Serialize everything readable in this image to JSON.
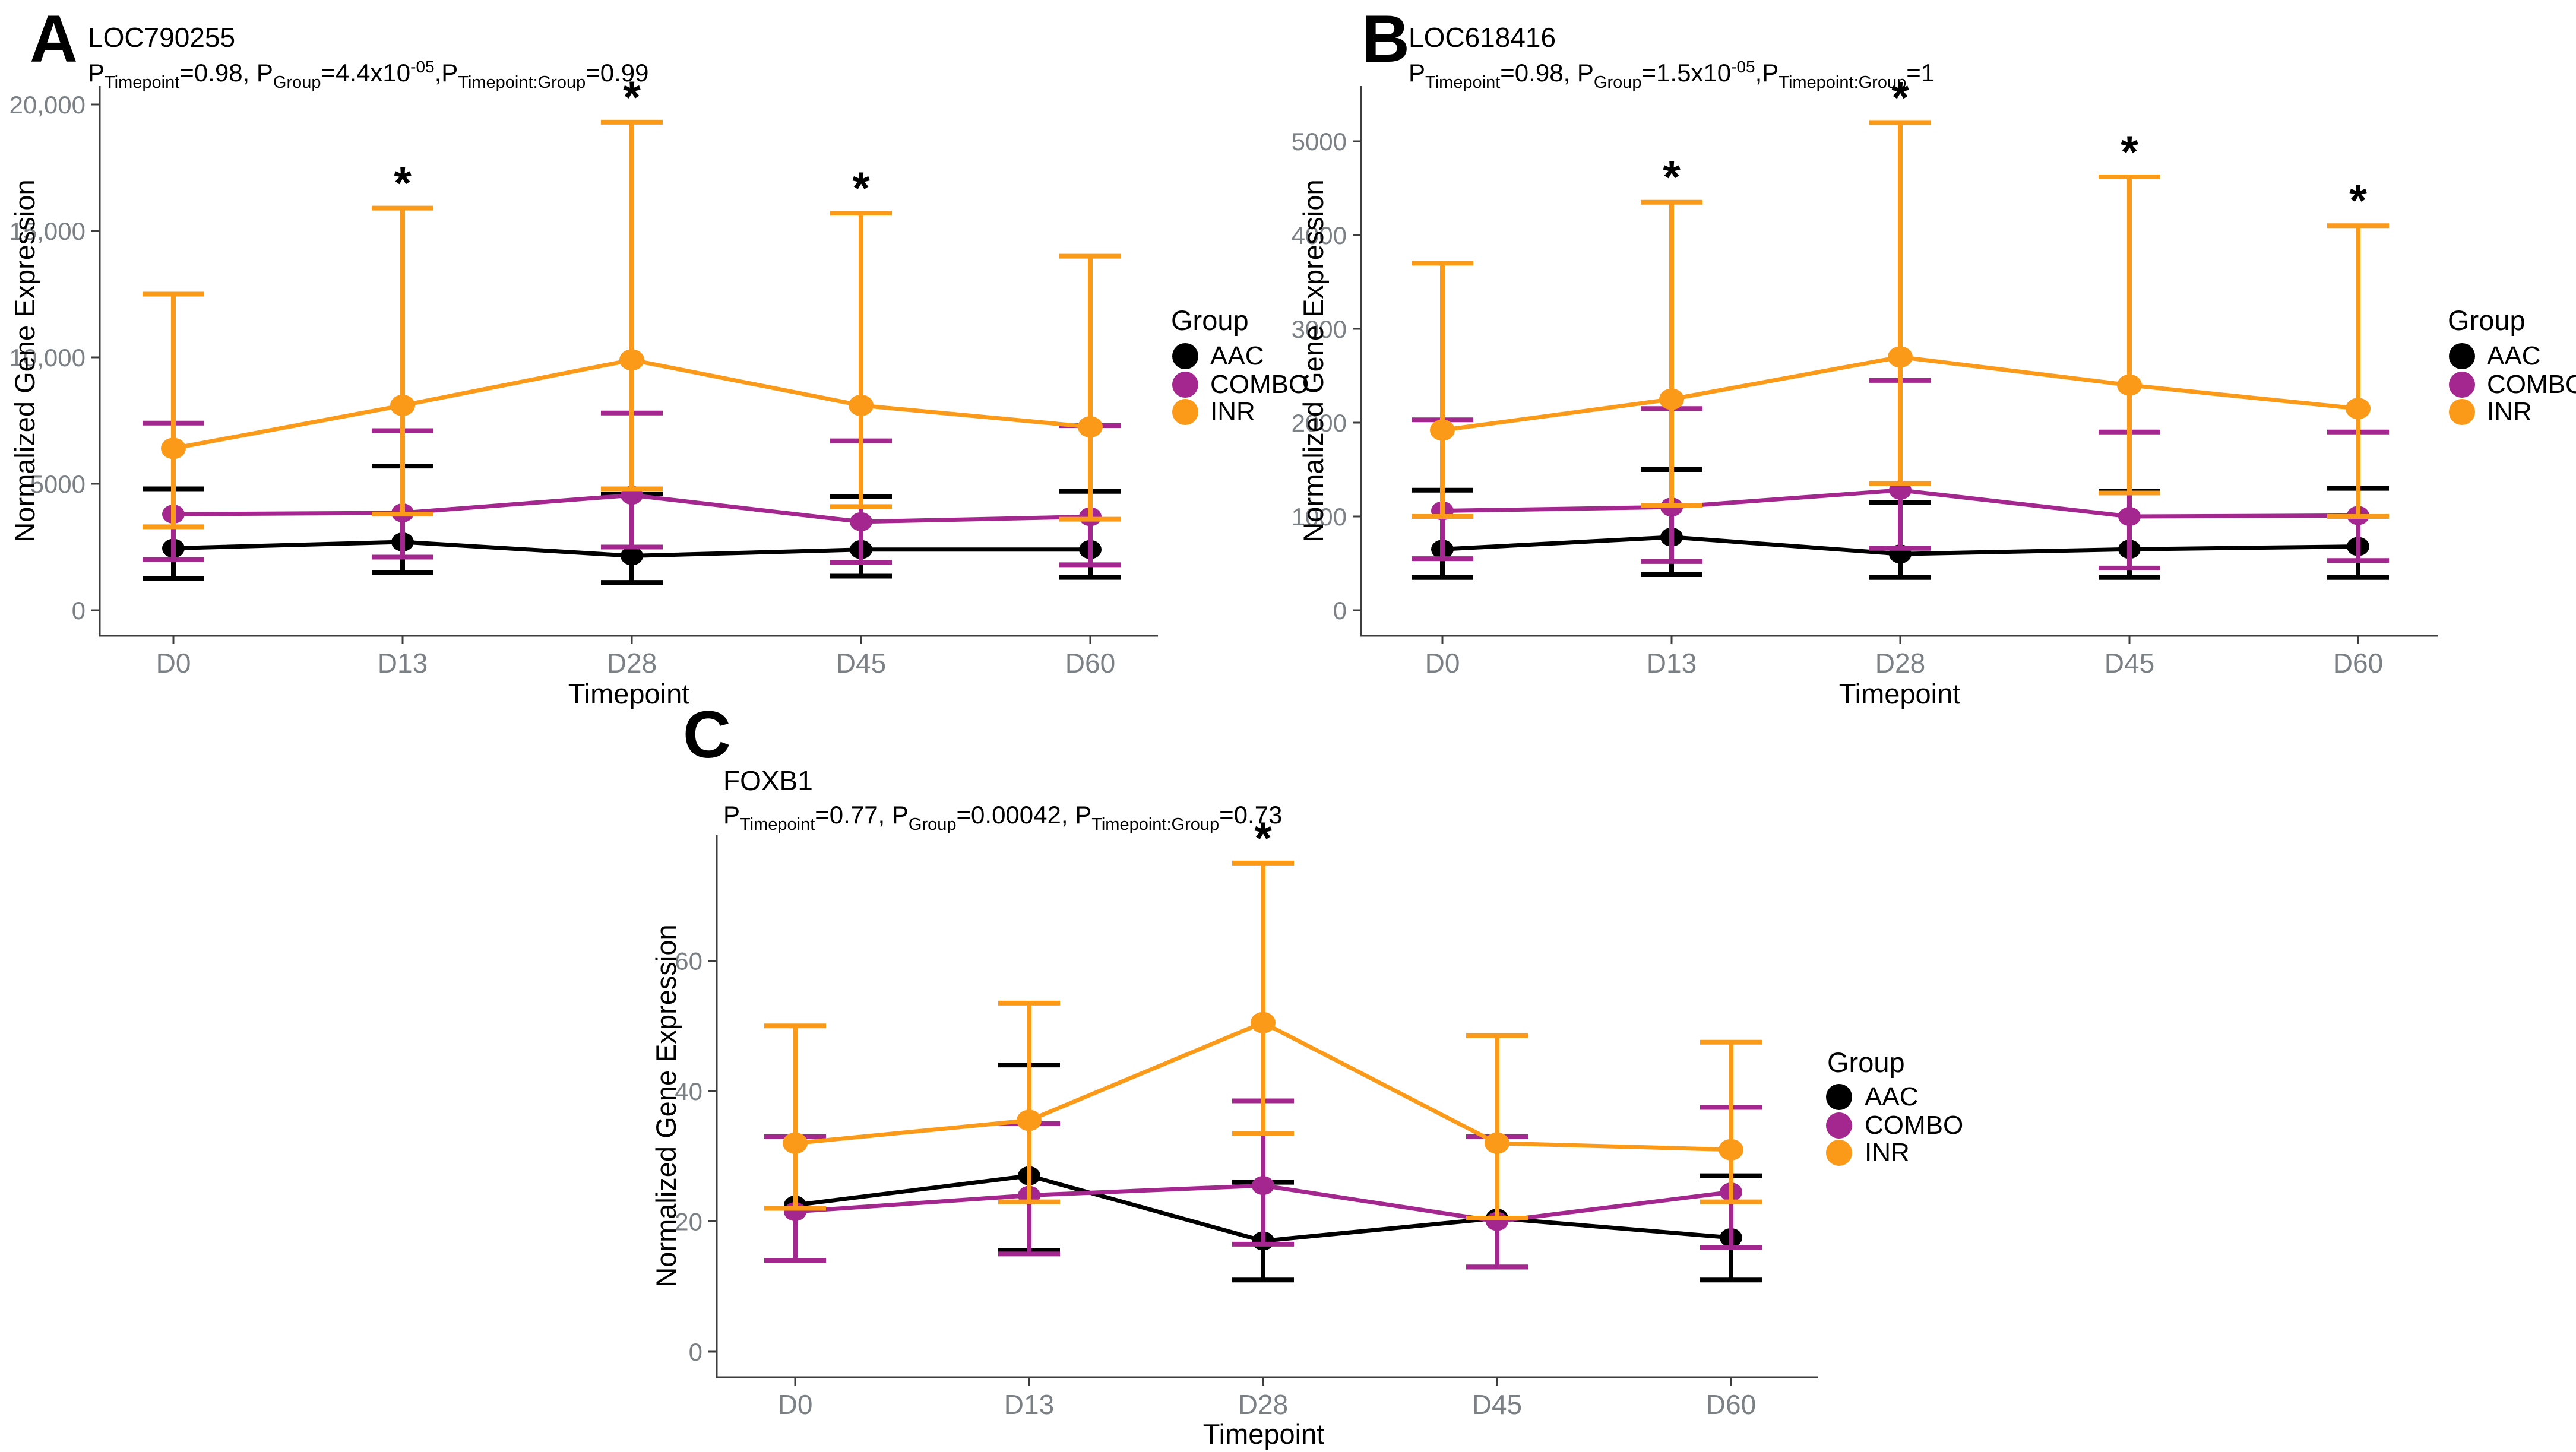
{
  "figure": {
    "y_axis_label": "Normalized Gene Expression",
    "x_axis_label": "Timepoint",
    "significance_marker": "*"
  },
  "legend": {
    "title": "Group",
    "items": [
      {
        "label": "AAC",
        "color": "#000000"
      },
      {
        "label": "COMBO",
        "color": "#A3278F"
      },
      {
        "label": "INR",
        "color": "#FB9A18"
      }
    ]
  },
  "chart_data": [
    {
      "type": "line",
      "panel": "A",
      "title": "LOC790255",
      "subtitle_parts": [
        {
          "text": "P"
        },
        {
          "sub": "Timepoint"
        },
        {
          "text": "=0.98, P"
        },
        {
          "sub": "Group"
        },
        {
          "text": "=4.4x10"
        },
        {
          "sup": "-05"
        },
        {
          "text": ",P"
        },
        {
          "sub": "Timepoint:Group"
        },
        {
          "text": "=0.99"
        }
      ],
      "xlabel": "Timepoint",
      "ylabel": "Normalized Gene Expression",
      "categories": [
        "D0",
        "D13",
        "D28",
        "D45",
        "D60"
      ],
      "ylim": [
        0,
        20500
      ],
      "yticks": [
        {
          "value": 0,
          "label": "0"
        },
        {
          "value": 5000,
          "label": "5000"
        },
        {
          "value": 10000,
          "label": "10,000"
        },
        {
          "value": 15000,
          "label": "15,000"
        },
        {
          "value": 20000,
          "label": "20,000"
        }
      ],
      "series": [
        {
          "name": "AAC",
          "color": "#000000",
          "values": [
            2450,
            2700,
            2150,
            2400,
            2400
          ],
          "lower": [
            1250,
            1500,
            1100,
            1350,
            1300
          ],
          "upper": [
            4800,
            5700,
            4600,
            4500,
            4700
          ]
        },
        {
          "name": "COMBO",
          "color": "#A3278F",
          "values": [
            3800,
            3850,
            4550,
            3500,
            3700
          ],
          "lower": [
            2000,
            2100,
            2500,
            1900,
            1800
          ],
          "upper": [
            7400,
            7100,
            7800,
            6700,
            7300
          ]
        },
        {
          "name": "INR",
          "color": "#FB9A18",
          "values": [
            6400,
            8100,
            9900,
            8100,
            7250
          ],
          "lower": [
            3300,
            3800,
            4800,
            4100,
            3600
          ],
          "upper": [
            12500,
            15900,
            19300,
            15700,
            14000
          ]
        }
      ],
      "star_timepoints": [
        "D13",
        "D28",
        "D45"
      ]
    },
    {
      "type": "line",
      "panel": "B",
      "title": "LOC618416",
      "subtitle_parts": [
        {
          "text": "P"
        },
        {
          "sub": "Timepoint"
        },
        {
          "text": "=0.98, P"
        },
        {
          "sub": "Group"
        },
        {
          "text": "=1.5x10"
        },
        {
          "sup": "-05"
        },
        {
          "text": ",P"
        },
        {
          "sub": "Timepoint:Group"
        },
        {
          "text": "=1"
        }
      ],
      "xlabel": "Timepoint",
      "ylabel": "Normalized Gene Expression",
      "categories": [
        "D0",
        "D13",
        "D28",
        "D45",
        "D60"
      ],
      "ylim": [
        0,
        5450
      ],
      "yticks": [
        {
          "value": 0,
          "label": "0"
        },
        {
          "value": 1000,
          "label": "1000"
        },
        {
          "value": 2000,
          "label": "2000"
        },
        {
          "value": 3000,
          "label": "3000"
        },
        {
          "value": 4000,
          "label": "4000"
        },
        {
          "value": 5000,
          "label": "5000"
        }
      ],
      "series": [
        {
          "name": "AAC",
          "color": "#000000",
          "values": [
            650,
            780,
            600,
            650,
            680
          ],
          "lower": [
            350,
            380,
            350,
            350,
            350
          ],
          "upper": [
            1280,
            1500,
            1150,
            1270,
            1300
          ]
        },
        {
          "name": "COMBO",
          "color": "#A3278F",
          "values": [
            1060,
            1100,
            1280,
            1000,
            1010
          ],
          "lower": [
            550,
            520,
            660,
            450,
            530
          ],
          "upper": [
            2030,
            2150,
            2450,
            1900,
            1900
          ]
        },
        {
          "name": "INR",
          "color": "#FB9A18",
          "values": [
            1920,
            2250,
            2700,
            2400,
            2150
          ],
          "lower": [
            1000,
            1120,
            1350,
            1250,
            1000
          ],
          "upper": [
            3700,
            4350,
            5200,
            4620,
            4100
          ]
        }
      ],
      "star_timepoints": [
        "D13",
        "D28",
        "D45",
        "D60"
      ]
    },
    {
      "type": "line",
      "panel": "C",
      "title": "FOXB1",
      "subtitle_parts": [
        {
          "text": "P"
        },
        {
          "sub": "Timepoint"
        },
        {
          "text": "=0.77, P"
        },
        {
          "sub": "Group"
        },
        {
          "text": "=0.00042, P"
        },
        {
          "sub": "Timepoint:Group"
        },
        {
          "text": "=0.73"
        }
      ],
      "xlabel": "Timepoint",
      "ylabel": "Normalized Gene Expression",
      "categories": [
        "D0",
        "D13",
        "D28",
        "D45",
        "D60"
      ],
      "ylim": [
        0,
        76
      ],
      "yticks": [
        {
          "value": 0,
          "label": "0"
        },
        {
          "value": 20,
          "label": "20"
        },
        {
          "value": 40,
          "label": "40"
        },
        {
          "value": 60,
          "label": "60"
        }
      ],
      "series": [
        {
          "name": "AAC",
          "color": "#000000",
          "values": [
            22.5,
            27,
            17,
            20.5,
            17.5
          ],
          "lower": [
            14,
            15.5,
            11,
            13,
            11
          ],
          "upper": [
            33,
            44,
            26,
            33,
            27
          ]
        },
        {
          "name": "COMBO",
          "color": "#A3278F",
          "values": [
            21.5,
            24,
            25.5,
            20,
            24.5
          ],
          "lower": [
            14,
            15,
            16.5,
            13,
            16
          ],
          "upper": [
            33,
            35,
            38.5,
            33,
            37.5
          ]
        },
        {
          "name": "INR",
          "color": "#FB9A18",
          "values": [
            32,
            35.5,
            50.5,
            32,
            31
          ],
          "lower": [
            22,
            23,
            33.5,
            20.5,
            23
          ],
          "upper": [
            50,
            53.5,
            75,
            48.5,
            47.5
          ]
        }
      ],
      "star_timepoints": [
        "D28"
      ]
    }
  ]
}
